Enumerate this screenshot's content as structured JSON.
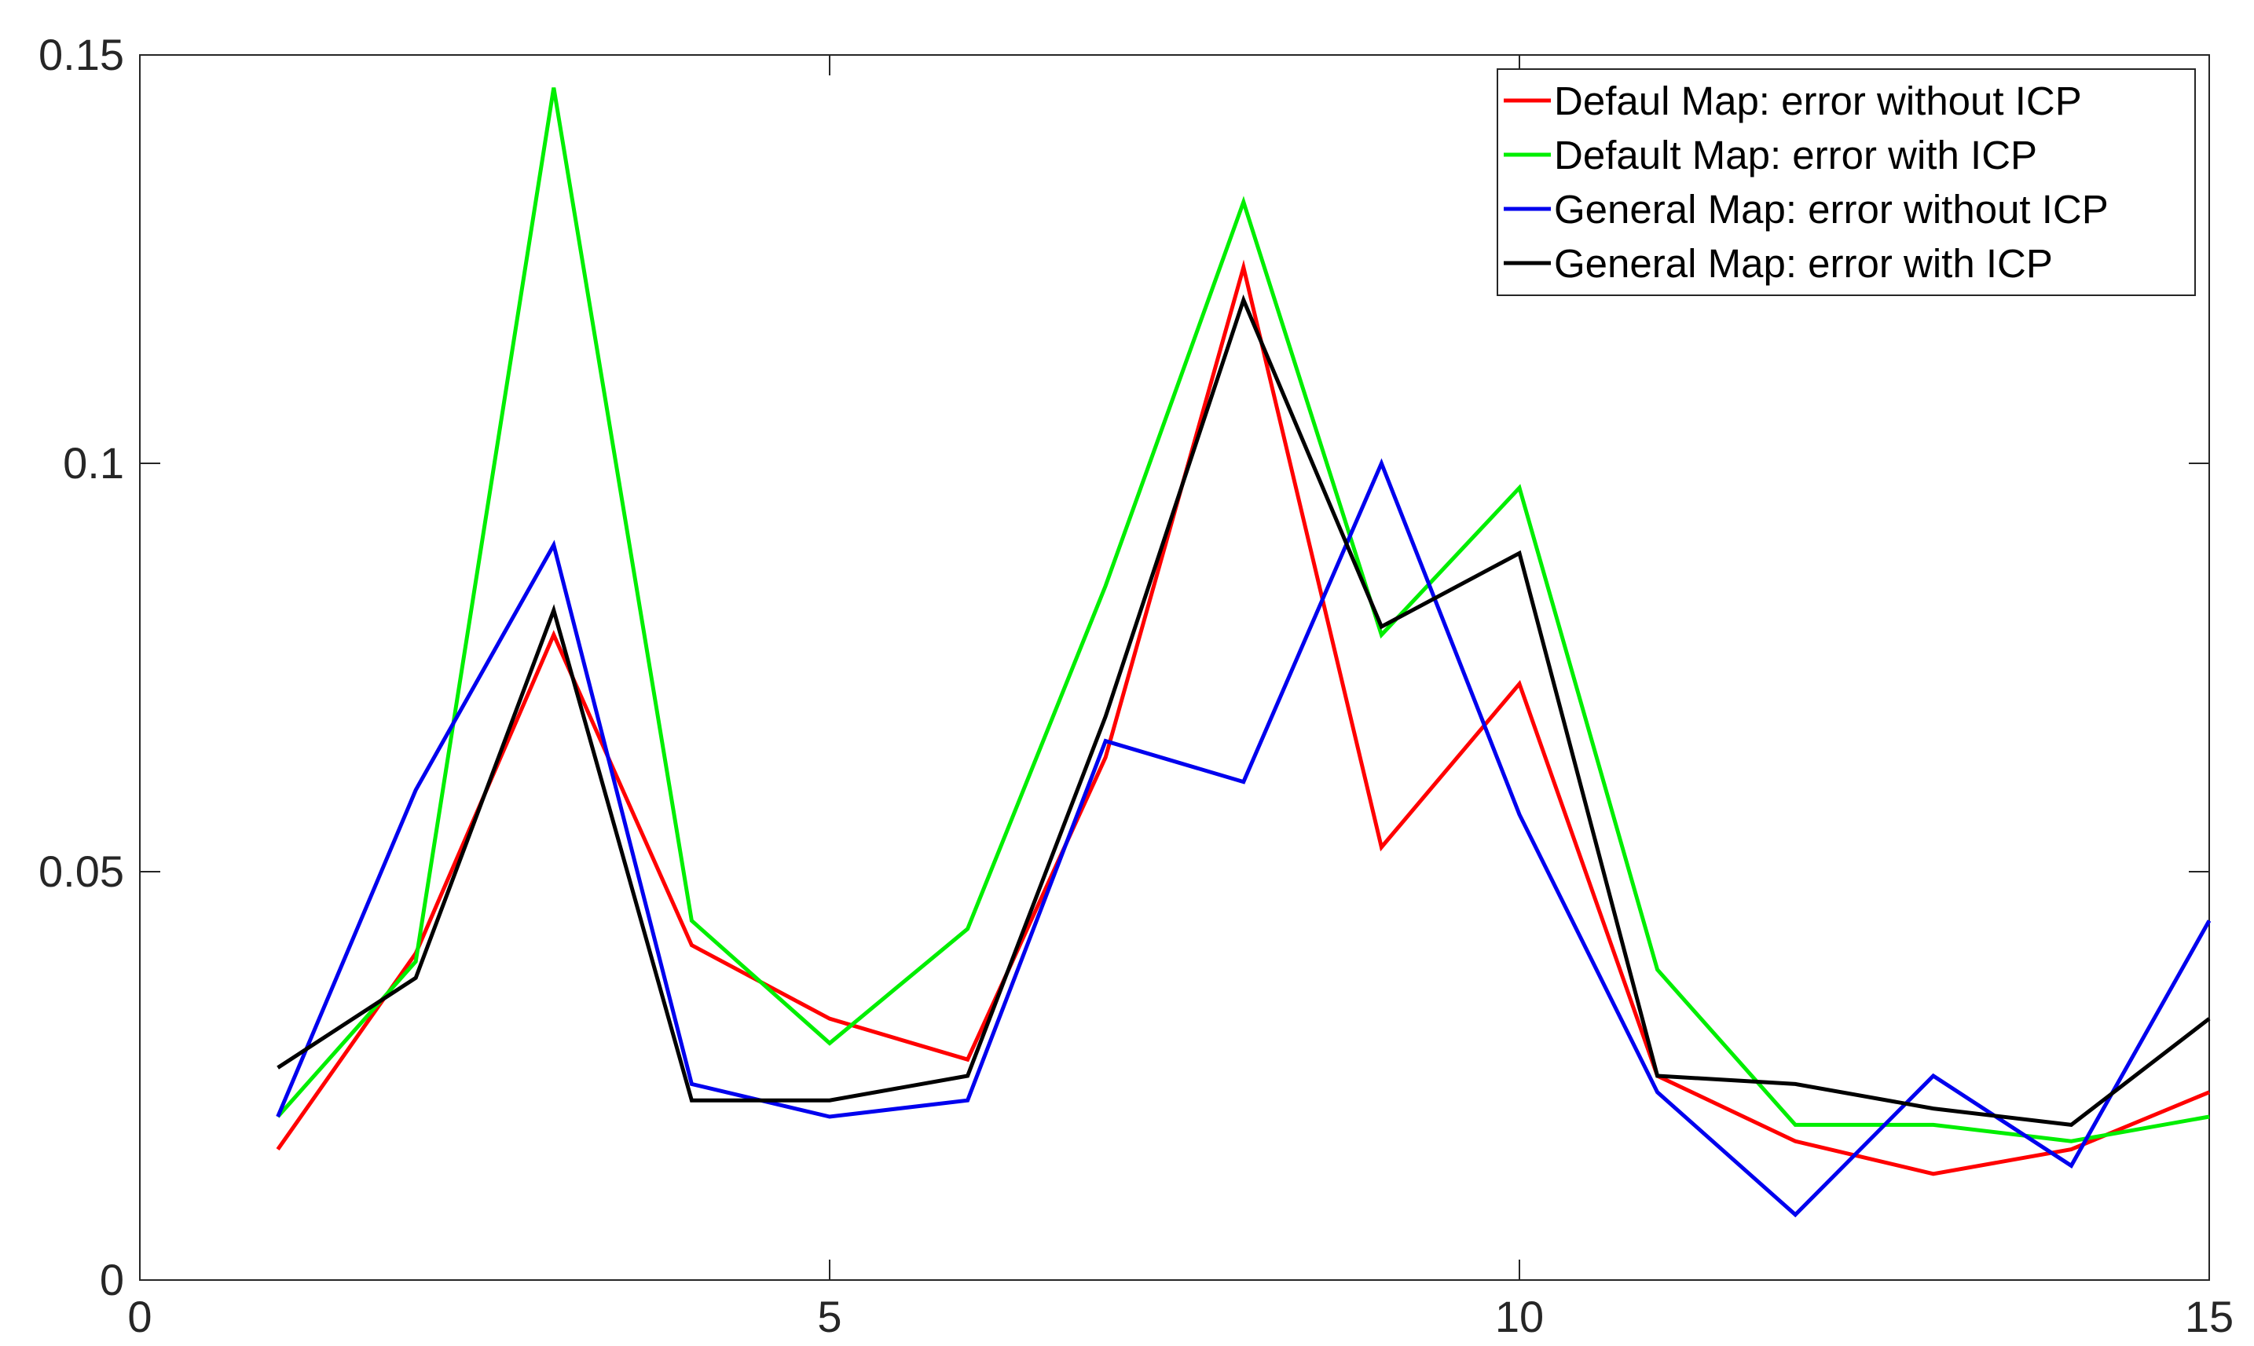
{
  "chart_data": {
    "type": "line",
    "title": "",
    "xlabel": "",
    "ylabel": "",
    "xlim": [
      0,
      15
    ],
    "ylim": [
      0,
      0.15
    ],
    "xticks": [
      0,
      5,
      10,
      15
    ],
    "xtick_labels": [
      "0",
      "5",
      "10",
      "15"
    ],
    "yticks": [
      0,
      0.05,
      0.1,
      0.15
    ],
    "ytick_labels": [
      "0",
      "0.05",
      "0.1",
      "0.15"
    ],
    "grid": false,
    "legend_position": "top-right",
    "x": [
      1,
      2,
      3,
      4,
      5,
      6,
      7,
      8,
      9,
      10,
      11,
      12,
      13,
      14,
      15
    ],
    "series": [
      {
        "name": "Defaul Map: error without ICP",
        "color": "#ff0000",
        "values": [
          0.016,
          0.04,
          0.079,
          0.041,
          0.032,
          0.027,
          0.064,
          0.124,
          0.053,
          0.073,
          0.025,
          0.017,
          0.013,
          0.016,
          0.023
        ]
      },
      {
        "name": "Default Map: error with ICP",
        "color": "#00ee00",
        "values": [
          0.02,
          0.039,
          0.146,
          0.044,
          0.029,
          0.043,
          0.085,
          0.132,
          0.079,
          0.097,
          0.038,
          0.019,
          0.019,
          0.017,
          0.02
        ]
      },
      {
        "name": "General Map: error without ICP",
        "color": "#0000ee",
        "values": [
          0.02,
          0.06,
          0.09,
          0.024,
          0.02,
          0.022,
          0.066,
          0.061,
          0.1,
          0.057,
          0.023,
          0.008,
          0.025,
          0.014,
          0.044
        ]
      },
      {
        "name": "General Map: error with ICP",
        "color": "#000000",
        "values": [
          0.026,
          0.037,
          0.082,
          0.022,
          0.022,
          0.025,
          0.069,
          0.12,
          0.08,
          0.089,
          0.025,
          0.024,
          0.021,
          0.019,
          0.032
        ]
      }
    ]
  }
}
